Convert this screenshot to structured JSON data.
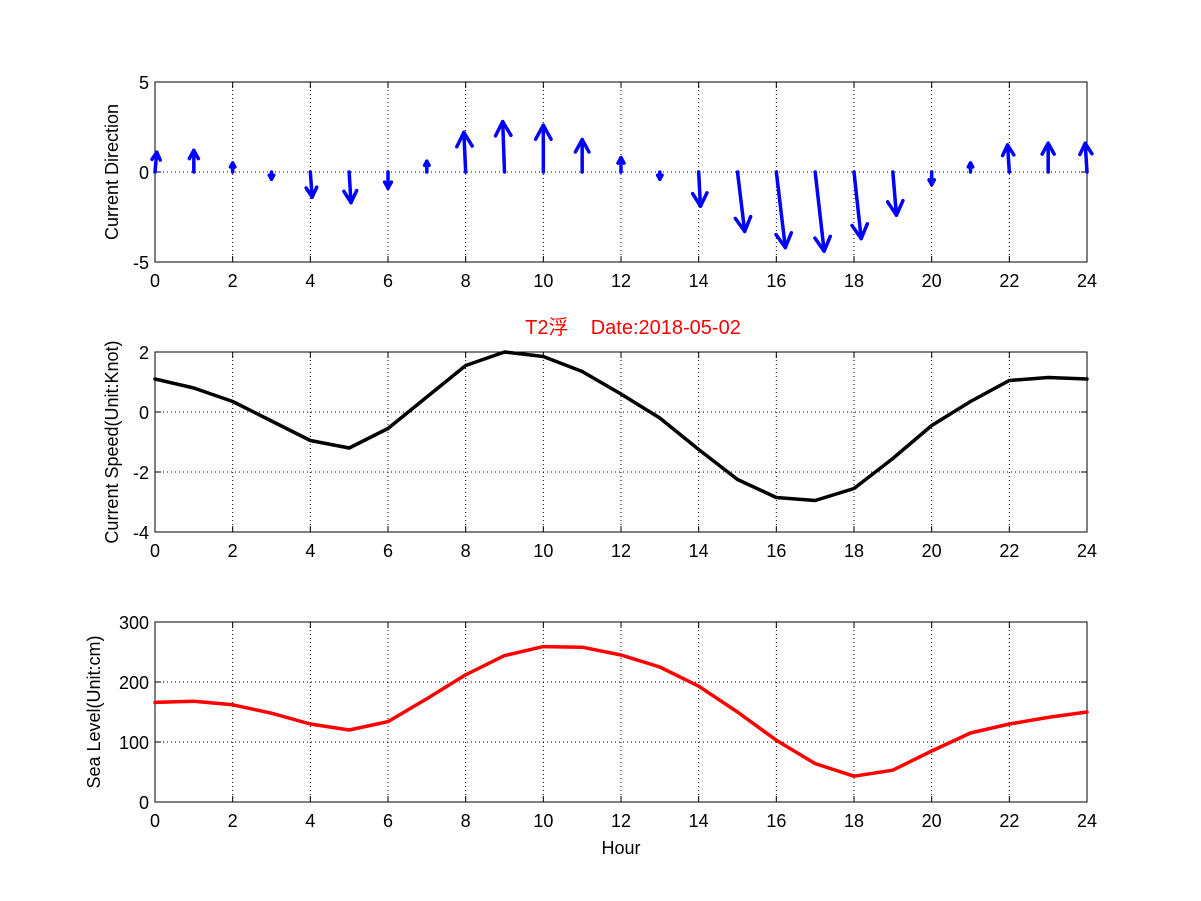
{
  "chart_data": [
    {
      "type": "quiver",
      "title": "",
      "xlabel": "",
      "ylabel": "Current Direction",
      "xlim": [
        0,
        24
      ],
      "ylim": [
        -5,
        5
      ],
      "xticks": [
        0,
        2,
        4,
        6,
        8,
        10,
        12,
        14,
        16,
        18,
        20,
        22,
        24
      ],
      "yticks": [
        -5,
        0,
        5
      ],
      "grid": true,
      "color": "#0000ff",
      "vectors": [
        {
          "x": 0,
          "u": 0.1,
          "v": 1.1
        },
        {
          "x": 1,
          "u": 0.0,
          "v": 1.2
        },
        {
          "x": 2,
          "u": 0.0,
          "v": 0.5
        },
        {
          "x": 3,
          "u": 0.0,
          "v": -0.4
        },
        {
          "x": 4,
          "u": 0.1,
          "v": -1.4
        },
        {
          "x": 5,
          "u": 0.1,
          "v": -1.7
        },
        {
          "x": 6,
          "u": 0.0,
          "v": -0.9
        },
        {
          "x": 7,
          "u": 0.0,
          "v": 0.6
        },
        {
          "x": 8,
          "u": -0.1,
          "v": 2.2
        },
        {
          "x": 9,
          "u": -0.1,
          "v": 2.8
        },
        {
          "x": 10,
          "u": 0.0,
          "v": 2.6
        },
        {
          "x": 11,
          "u": 0.0,
          "v": 1.8
        },
        {
          "x": 12,
          "u": 0.0,
          "v": 0.8
        },
        {
          "x": 13,
          "u": 0.0,
          "v": -0.4
        },
        {
          "x": 14,
          "u": 0.1,
          "v": -1.9
        },
        {
          "x": 15,
          "u": 0.4,
          "v": -3.3
        },
        {
          "x": 16,
          "u": 0.5,
          "v": -4.2
        },
        {
          "x": 17,
          "u": 0.5,
          "v": -4.4
        },
        {
          "x": 18,
          "u": 0.4,
          "v": -3.7
        },
        {
          "x": 19,
          "u": 0.2,
          "v": -2.4
        },
        {
          "x": 20,
          "u": 0.0,
          "v": -0.7
        },
        {
          "x": 21,
          "u": 0.0,
          "v": 0.5
        },
        {
          "x": 22,
          "u": -0.1,
          "v": 1.5
        },
        {
          "x": 23,
          "u": 0.0,
          "v": 1.6
        },
        {
          "x": 24,
          "u": -0.1,
          "v": 1.6
        }
      ]
    },
    {
      "type": "line",
      "title": "T2浮    Date:2018-05-02",
      "xlabel": "",
      "ylabel": "Current Speed(Unit:Knot)",
      "xlim": [
        0,
        24
      ],
      "ylim": [
        -4,
        2
      ],
      "xticks": [
        0,
        2,
        4,
        6,
        8,
        10,
        12,
        14,
        16,
        18,
        20,
        22,
        24
      ],
      "yticks": [
        -4,
        -2,
        0,
        2
      ],
      "grid": true,
      "series": [
        {
          "name": "Current Speed",
          "color": "#000000",
          "x": [
            0,
            1,
            2,
            3,
            4,
            5,
            6,
            7,
            8,
            9,
            10,
            11,
            12,
            13,
            14,
            15,
            16,
            17,
            18,
            19,
            20,
            21,
            22,
            23,
            24
          ],
          "values": [
            1.1,
            0.8,
            0.35,
            -0.3,
            -0.95,
            -1.2,
            -0.55,
            0.5,
            1.55,
            2.0,
            1.85,
            1.35,
            0.6,
            -0.2,
            -1.25,
            -2.25,
            -2.85,
            -2.95,
            -2.55,
            -1.55,
            -0.45,
            0.35,
            1.05,
            1.15,
            1.1
          ]
        }
      ]
    },
    {
      "type": "line",
      "title": "",
      "xlabel": "Hour",
      "ylabel": "Sea Level(Unit:cm)",
      "xlim": [
        0,
        24
      ],
      "ylim": [
        0,
        300
      ],
      "xticks": [
        0,
        2,
        4,
        6,
        8,
        10,
        12,
        14,
        16,
        18,
        20,
        22,
        24
      ],
      "yticks": [
        0,
        100,
        200,
        300
      ],
      "grid": true,
      "series": [
        {
          "name": "Sea Level",
          "color": "#ff0000",
          "x": [
            0,
            1,
            2,
            3,
            4,
            5,
            6,
            7,
            8,
            9,
            10,
            11,
            12,
            13,
            14,
            15,
            16,
            17,
            18,
            19,
            20,
            21,
            22,
            23,
            24
          ],
          "values": [
            166,
            168,
            162,
            148,
            130,
            120,
            134,
            172,
            212,
            244,
            259,
            258,
            245,
            225,
            193,
            150,
            103,
            64,
            43,
            53,
            85,
            115,
            130,
            141,
            150
          ]
        }
      ]
    }
  ]
}
